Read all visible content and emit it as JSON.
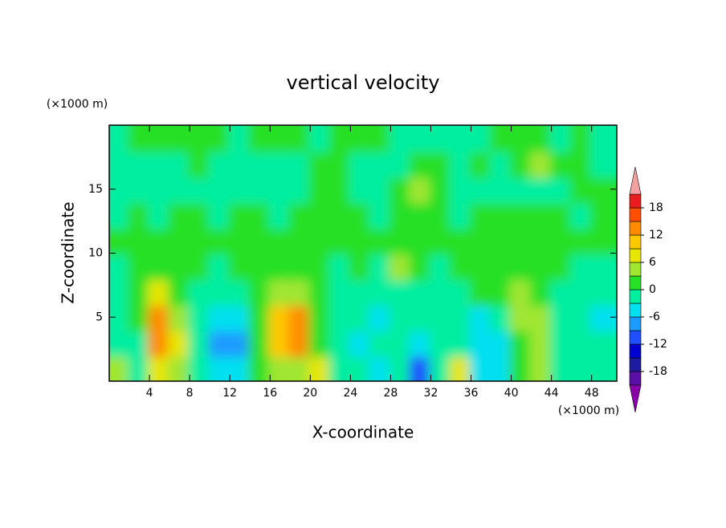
{
  "chart_data": {
    "type": "contour",
    "title": "vertical velocity",
    "x_label": "X-coordinate",
    "y_label": "Z-coordinate",
    "x_unit": "(×1000 m)",
    "y_unit": "(×1000 m)",
    "x": [
      1,
      3,
      5,
      7,
      9,
      11,
      13,
      15,
      17,
      19,
      21,
      23,
      25,
      27,
      29,
      31,
      33,
      35,
      37,
      39,
      41,
      43,
      45,
      47,
      49
    ],
    "y": [
      1,
      3,
      5,
      7,
      9,
      11,
      13,
      15,
      17,
      19
    ],
    "z": [
      [
        4,
        -3,
        8,
        3,
        -2,
        -6,
        -5,
        1,
        5,
        4,
        7,
        -2,
        -3,
        -4,
        -2,
        -10,
        -1,
        8,
        -4,
        -5,
        1,
        4,
        -3,
        -2,
        -1
      ],
      [
        -3,
        -2,
        13,
        6,
        -2,
        -7,
        -8,
        2,
        10,
        12,
        2,
        -2,
        -4,
        -3,
        -2,
        -4,
        -2,
        -3,
        -5,
        -4,
        2,
        5,
        -2,
        -3,
        -2
      ],
      [
        -2,
        1,
        14,
        4,
        -1,
        -5,
        -4,
        1,
        9,
        13,
        2,
        -3,
        -2,
        -5,
        -3,
        -2,
        -3,
        -2,
        -4,
        -1,
        4,
        5,
        -1,
        -3,
        -4
      ],
      [
        -2,
        2,
        6,
        2,
        -1,
        -2,
        -2,
        1,
        4,
        5,
        1,
        -1,
        -3,
        -2,
        -1,
        -2,
        -1,
        -2,
        1,
        2,
        3,
        2,
        -1,
        -2,
        -1
      ],
      [
        -1,
        1,
        2,
        1,
        1,
        -1,
        1,
        1,
        2,
        2,
        1,
        -1,
        1,
        -1,
        3,
        1,
        -1,
        1,
        2,
        1,
        2,
        1,
        1,
        -1,
        -1
      ],
      [
        1,
        1,
        1,
        1,
        1,
        1,
        1,
        1,
        1,
        1,
        1,
        1,
        1,
        1,
        1,
        1,
        1,
        1,
        1,
        1,
        2,
        1,
        1,
        1,
        1
      ],
      [
        -1,
        1,
        -1,
        1,
        1,
        -1,
        1,
        1,
        -1,
        1,
        1,
        1,
        1,
        -1,
        1,
        1,
        1,
        -1,
        1,
        1,
        1,
        1,
        1,
        -1,
        1
      ],
      [
        -1,
        -1,
        -1,
        -2,
        -1,
        -1,
        -2,
        -1,
        -2,
        -1,
        1,
        1,
        -1,
        -1,
        1,
        4,
        2,
        -1,
        -1,
        -2,
        -1,
        -1,
        -1,
        1,
        1
      ],
      [
        -1,
        -1,
        -1,
        -1,
        1,
        -1,
        -1,
        -1,
        -1,
        -1,
        1,
        1,
        -1,
        -1,
        -1,
        1,
        1,
        -1,
        1,
        -1,
        1,
        3,
        1,
        1,
        -1
      ],
      [
        -1,
        1,
        1,
        1,
        1,
        1,
        -1,
        1,
        1,
        1,
        -1,
        1,
        1,
        1,
        -1,
        -1,
        -1,
        -1,
        -1,
        1,
        1,
        1,
        -1,
        1,
        -1
      ]
    ],
    "xlim": [
      0,
      50.5
    ],
    "ylim": [
      0,
      20
    ],
    "xticks": [
      4,
      8,
      12,
      16,
      20,
      24,
      28,
      32,
      36,
      40,
      44,
      48
    ],
    "yticks": [
      5,
      10,
      15
    ],
    "levels": [
      -21,
      -18,
      -15,
      -12,
      -9,
      -6,
      -3,
      0,
      3,
      6,
      9,
      12,
      15,
      18,
      21
    ],
    "colors": [
      "#5a10a0",
      "#1c1c9c",
      "#0000d0",
      "#1e50ff",
      "#1e9bff",
      "#00e0f0",
      "#00eea0",
      "#28e028",
      "#a0e632",
      "#e6e600",
      "#ffc800",
      "#ff8c00",
      "#ff5000",
      "#e61e1e"
    ],
    "under_color": "#8a00a8",
    "over_color": "#f4a0a0",
    "colorbar_ticks": [
      -18,
      -12,
      -6,
      0,
      6,
      12,
      18
    ]
  }
}
